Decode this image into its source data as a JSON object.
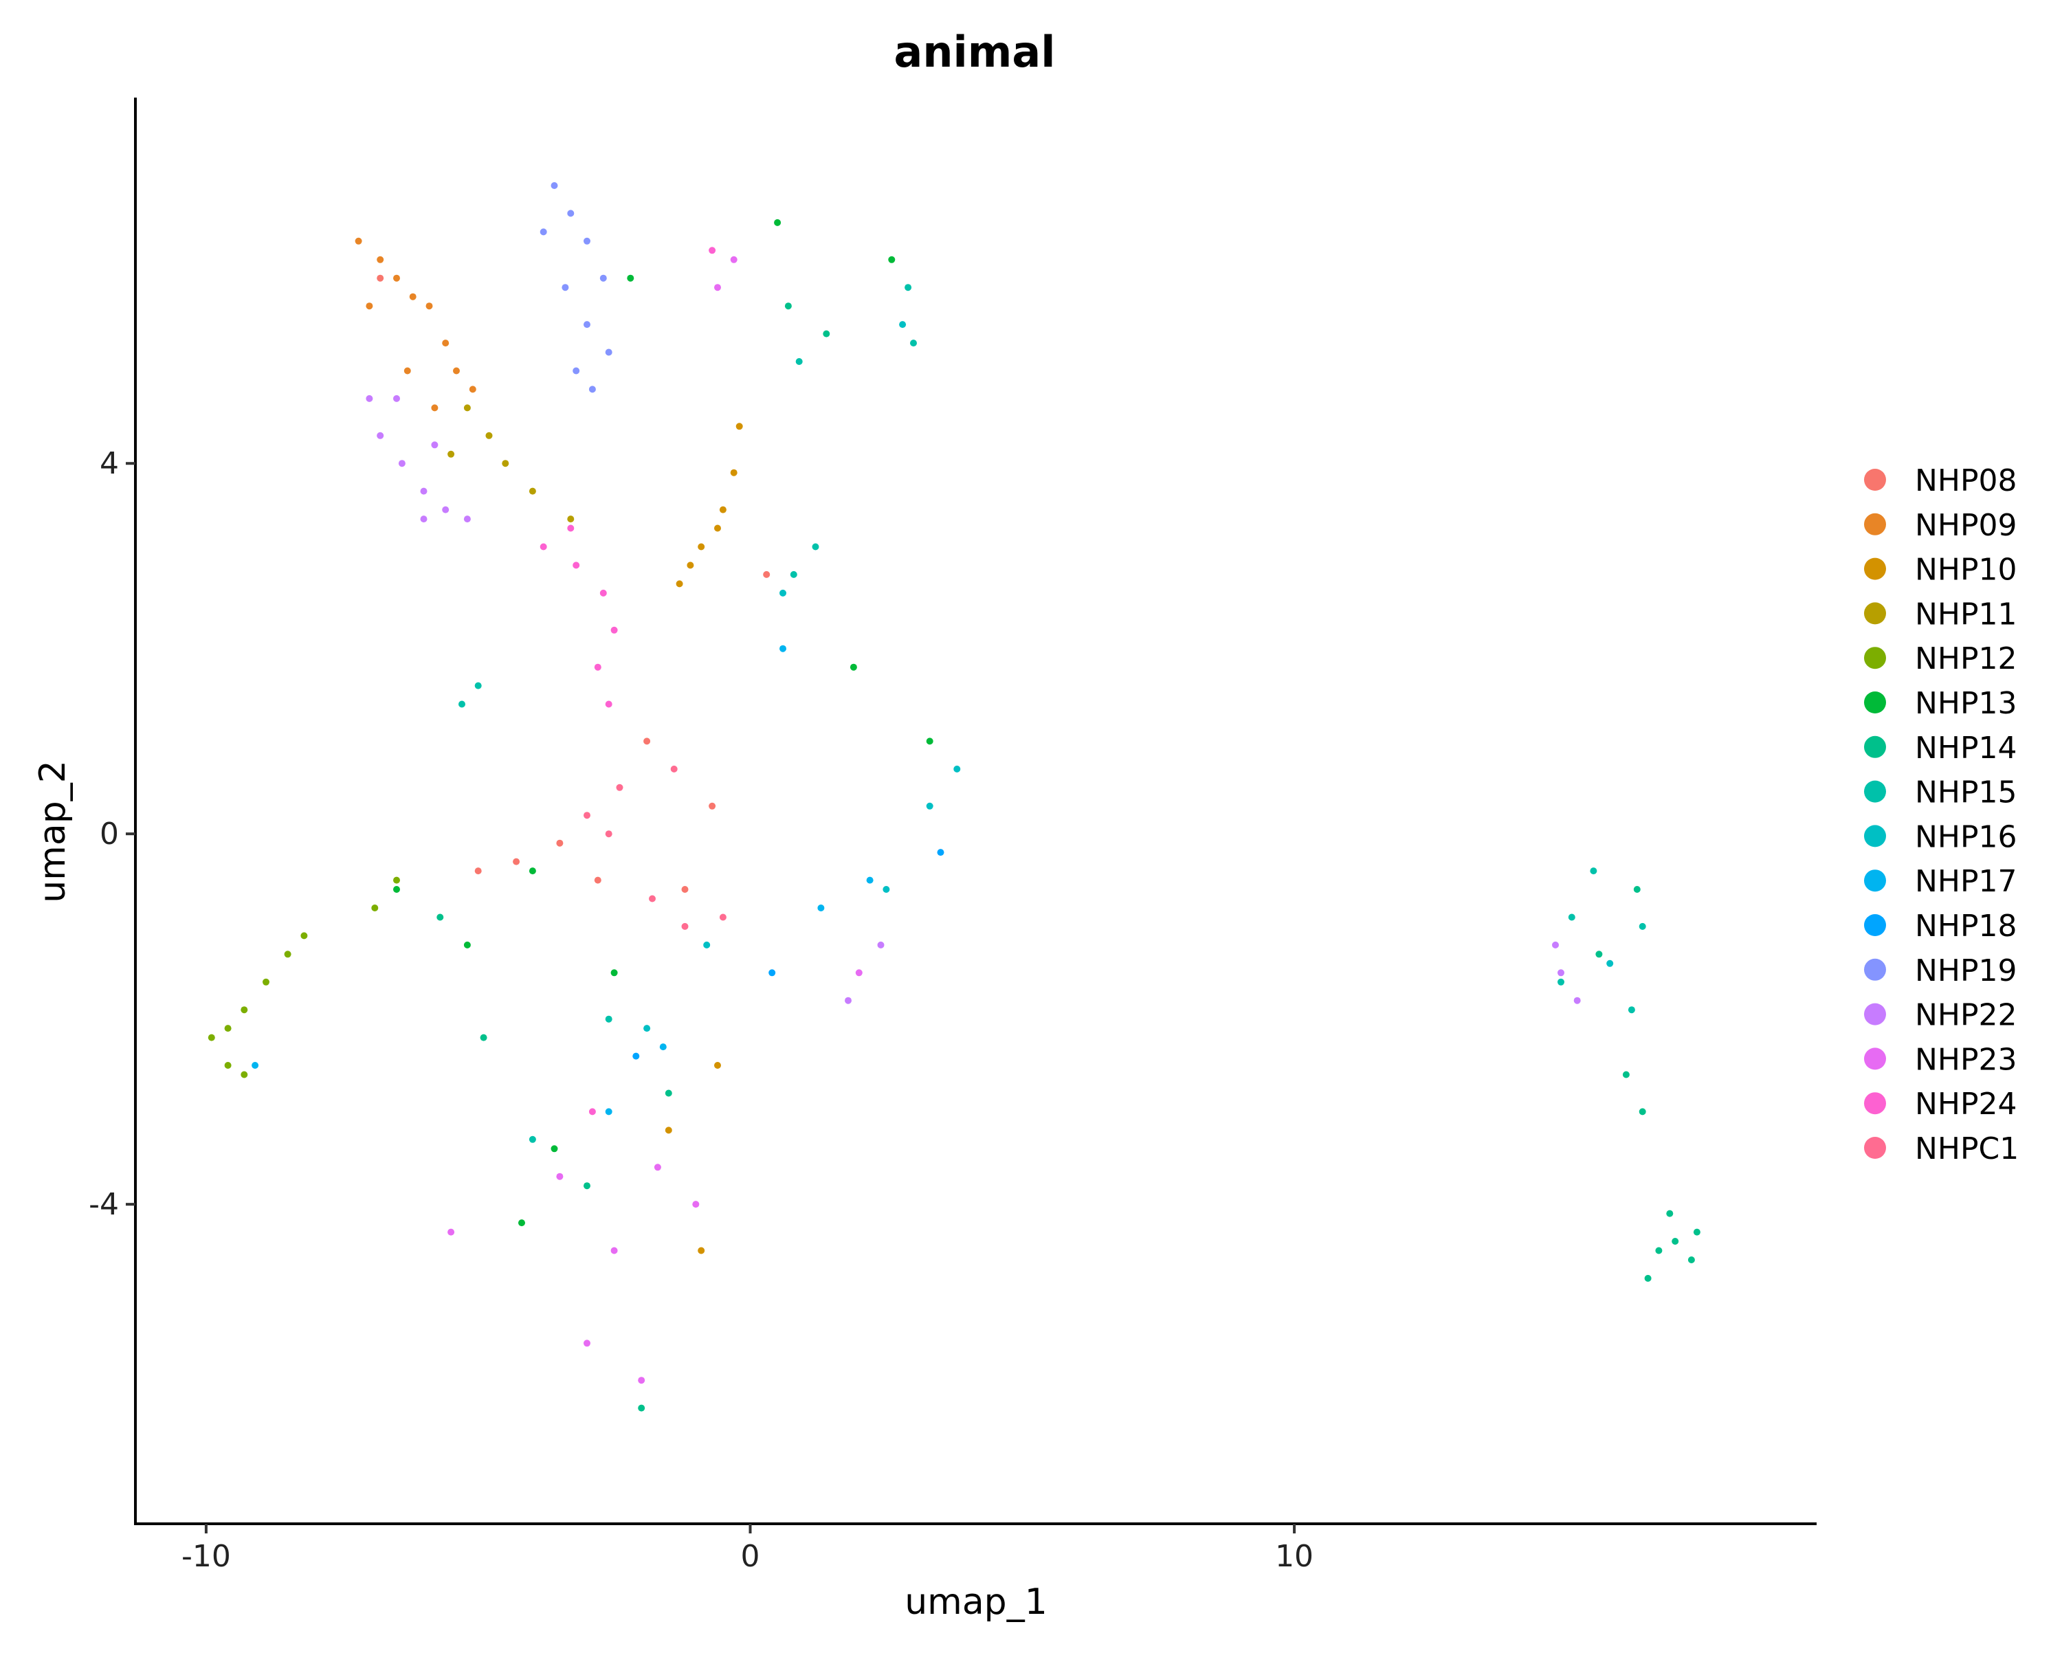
{
  "chart_data": {
    "type": "scatter",
    "title": "animal",
    "xlabel": "umap_1",
    "ylabel": "umap_2",
    "xlim": [
      -11.3,
      19.6
    ],
    "ylim": [
      -7.45,
      7.95
    ],
    "xticks": [
      -10,
      0,
      10
    ],
    "xtick_labels": [
      "-10",
      "0",
      "10"
    ],
    "yticks": [
      -4,
      0,
      4
    ],
    "ytick_labels": [
      "-4",
      "0",
      "4"
    ],
    "grid": false,
    "legend_position": "right",
    "series": [
      {
        "name": "NHP08",
        "color": "#F8766D",
        "points": [
          [
            -6.8,
            6.0
          ],
          [
            -4.3,
            -0.3
          ],
          [
            -3.5,
            -0.1
          ],
          [
            -2.8,
            -0.5
          ],
          [
            -1.2,
            -0.6
          ],
          [
            -0.7,
            0.3
          ],
          [
            -1.9,
            1.0
          ],
          [
            -5.0,
            -0.4
          ],
          [
            0.3,
            2.8
          ]
        ]
      },
      {
        "name": "NHP09",
        "color": "#E88526",
        "points": [
          [
            -7.2,
            6.4
          ],
          [
            -6.8,
            6.2
          ],
          [
            -6.5,
            6.0
          ],
          [
            -6.2,
            5.8
          ],
          [
            -5.9,
            5.7
          ],
          [
            -5.6,
            5.3
          ],
          [
            -5.4,
            5.0
          ],
          [
            -5.1,
            4.8
          ],
          [
            -5.8,
            4.6
          ],
          [
            -6.3,
            5.0
          ],
          [
            -7.0,
            5.7
          ]
        ]
      },
      {
        "name": "NHP10",
        "color": "#D39200",
        "points": [
          [
            -0.6,
            3.3
          ],
          [
            -0.9,
            3.1
          ],
          [
            -1.1,
            2.9
          ],
          [
            -0.5,
            3.5
          ],
          [
            -0.3,
            3.9
          ],
          [
            -0.2,
            4.4
          ],
          [
            -1.3,
            2.7
          ],
          [
            -0.9,
            -4.5
          ],
          [
            -0.6,
            -2.5
          ],
          [
            -1.5,
            -3.2
          ]
        ]
      },
      {
        "name": "NHP11",
        "color": "#B79F00",
        "points": [
          [
            -5.2,
            4.6
          ],
          [
            -4.8,
            4.3
          ],
          [
            -4.5,
            4.0
          ],
          [
            -5.5,
            4.1
          ],
          [
            -4.0,
            3.7
          ],
          [
            -3.3,
            3.4
          ]
        ]
      },
      {
        "name": "NHP12",
        "color": "#7CAE00",
        "points": [
          [
            -9.9,
            -2.2
          ],
          [
            -9.6,
            -2.1
          ],
          [
            -9.3,
            -1.9
          ],
          [
            -8.9,
            -1.6
          ],
          [
            -8.5,
            -1.3
          ],
          [
            -8.2,
            -1.1
          ],
          [
            -9.6,
            -2.5
          ],
          [
            -9.3,
            -2.6
          ],
          [
            -6.9,
            -0.8
          ],
          [
            -6.5,
            -0.5
          ]
        ]
      },
      {
        "name": "NHP13",
        "color": "#00BA38",
        "points": [
          [
            -6.5,
            -0.6
          ],
          [
            -5.2,
            -1.2
          ],
          [
            -4.0,
            -0.4
          ],
          [
            -2.5,
            -1.5
          ],
          [
            -3.6,
            -3.4
          ],
          [
            -4.2,
            -4.2
          ],
          [
            1.9,
            1.8
          ],
          [
            3.3,
            1.0
          ],
          [
            0.5,
            6.6
          ],
          [
            2.6,
            6.2
          ],
          [
            -2.2,
            6.0
          ]
        ]
      },
      {
        "name": "NHP14",
        "color": "#00C08B",
        "points": [
          [
            16.7,
            -4.5
          ],
          [
            17.0,
            -4.4
          ],
          [
            17.3,
            -4.6
          ],
          [
            16.5,
            -4.8
          ],
          [
            16.9,
            -4.1
          ],
          [
            17.4,
            -4.3
          ],
          [
            16.4,
            -3.0
          ],
          [
            16.1,
            -2.6
          ],
          [
            15.6,
            -1.3
          ],
          [
            16.3,
            -0.6
          ],
          [
            -5.7,
            -0.9
          ],
          [
            -4.9,
            -2.2
          ],
          [
            -3.0,
            -3.8
          ],
          [
            -2.0,
            -6.2
          ],
          [
            0.7,
            5.7
          ],
          [
            1.4,
            5.4
          ],
          [
            -1.5,
            -2.8
          ]
        ]
      },
      {
        "name": "NHP15",
        "color": "#00C1AA",
        "points": [
          [
            15.5,
            -0.4
          ],
          [
            15.1,
            -0.9
          ],
          [
            16.4,
            -1.0
          ],
          [
            14.9,
            -1.6
          ],
          [
            16.2,
            -1.9
          ],
          [
            0.8,
            2.8
          ],
          [
            1.2,
            3.1
          ],
          [
            -5.3,
            1.4
          ],
          [
            -5.0,
            1.6
          ],
          [
            -2.6,
            -2.0
          ],
          [
            -4.0,
            -3.3
          ],
          [
            2.9,
            5.9
          ],
          [
            3.0,
            5.3
          ],
          [
            0.9,
            5.1
          ]
        ]
      },
      {
        "name": "NHP16",
        "color": "#00BFC4",
        "points": [
          [
            2.5,
            -0.6
          ],
          [
            3.3,
            0.3
          ],
          [
            3.8,
            0.7
          ],
          [
            -1.9,
            -2.1
          ],
          [
            -0.8,
            -1.2
          ],
          [
            0.6,
            2.6
          ],
          [
            15.8,
            -1.4
          ],
          [
            2.8,
            5.5
          ]
        ]
      },
      {
        "name": "NHP17",
        "color": "#00B4F0",
        "points": [
          [
            1.3,
            -0.8
          ],
          [
            2.2,
            -0.5
          ],
          [
            -1.6,
            -2.3
          ],
          [
            0.6,
            2.0
          ],
          [
            -2.6,
            -3.0
          ],
          [
            -9.1,
            -2.5
          ]
        ]
      },
      {
        "name": "NHP18",
        "color": "#00A5FF",
        "points": [
          [
            0.4,
            -1.5
          ],
          [
            3.5,
            -0.2
          ],
          [
            -2.1,
            -2.4
          ]
        ]
      },
      {
        "name": "NHP19",
        "color": "#8494FF",
        "points": [
          [
            -3.6,
            7.0
          ],
          [
            -3.3,
            6.7
          ],
          [
            -3.0,
            6.4
          ],
          [
            -2.7,
            6.0
          ],
          [
            -3.4,
            5.9
          ],
          [
            -3.0,
            5.5
          ],
          [
            -2.6,
            5.2
          ],
          [
            -3.2,
            5.0
          ],
          [
            -3.8,
            6.5
          ],
          [
            -2.9,
            4.8
          ]
        ]
      },
      {
        "name": "NHP22",
        "color": "#C77CFF",
        "points": [
          [
            -6.8,
            4.3
          ],
          [
            -6.4,
            4.0
          ],
          [
            -6.0,
            3.7
          ],
          [
            -5.6,
            3.5
          ],
          [
            -5.2,
            3.4
          ],
          [
            -6.5,
            4.7
          ],
          [
            -7.0,
            4.7
          ],
          [
            -5.8,
            4.2
          ],
          [
            14.8,
            -1.2
          ],
          [
            14.9,
            -1.5
          ],
          [
            15.2,
            -1.8
          ],
          [
            2.4,
            -1.2
          ],
          [
            1.8,
            -1.8
          ],
          [
            -6.0,
            3.4
          ]
        ]
      },
      {
        "name": "NHP23",
        "color": "#E76BF3",
        "points": [
          [
            -2.5,
            -4.5
          ],
          [
            -3.0,
            -5.5
          ],
          [
            -2.0,
            -5.9
          ],
          [
            -5.5,
            -4.3
          ],
          [
            -1.0,
            -4.0
          ],
          [
            -1.7,
            -3.6
          ],
          [
            -0.3,
            6.2
          ],
          [
            2.0,
            -1.5
          ],
          [
            -0.6,
            5.9
          ],
          [
            -3.5,
            -3.7
          ]
        ]
      },
      {
        "name": "NHP24",
        "color": "#FD61D1",
        "points": [
          [
            -3.8,
            3.1
          ],
          [
            -3.2,
            2.9
          ],
          [
            -2.7,
            2.6
          ],
          [
            -2.5,
            2.2
          ],
          [
            -2.8,
            1.8
          ],
          [
            -2.6,
            1.4
          ],
          [
            -3.3,
            3.3
          ],
          [
            -2.9,
            -3.0
          ],
          [
            -0.7,
            6.3
          ]
        ]
      },
      {
        "name": "NHPC1",
        "color": "#FF6C91",
        "points": [
          [
            -2.4,
            0.5
          ],
          [
            -3.0,
            0.2
          ],
          [
            -1.4,
            0.7
          ],
          [
            -1.2,
            -1.0
          ],
          [
            -0.5,
            -0.9
          ],
          [
            -1.8,
            -0.7
          ],
          [
            -2.6,
            0.0
          ]
        ]
      }
    ]
  }
}
